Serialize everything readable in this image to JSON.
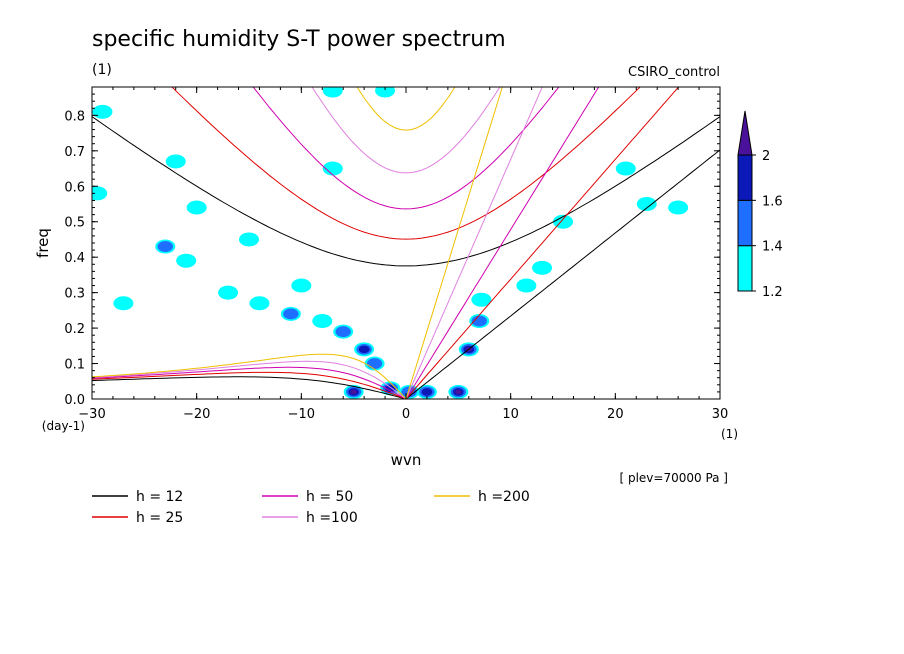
{
  "chart_data": {
    "type": "contour",
    "title": "specific humidity S-T power spectrum",
    "subtitle_left": "(1)",
    "subtitle_right": "CSIRO_control",
    "xlabel": "wvn",
    "ylabel": "freq",
    "x_unit": "(1)",
    "y_unit": "(day-1)",
    "xlim": [
      -30,
      30
    ],
    "ylim": [
      0,
      0.88
    ],
    "x_ticks": [
      -30,
      -20,
      -10,
      0,
      10,
      20,
      30
    ],
    "y_ticks": [
      0.0,
      0.1,
      0.2,
      0.3,
      0.4,
      0.5,
      0.6,
      0.7,
      0.8
    ],
    "annotation": "[ plev=70000 Pa ]",
    "colorbar": {
      "levels": [
        1.2,
        1.4,
        1.6,
        2
      ],
      "colors": [
        "#00ffff",
        "#1e6fff",
        "#0b19b8",
        "#4a129a"
      ]
    },
    "dispersion_curves": [
      {
        "label": "h = 12",
        "h": 12,
        "color": "#000000"
      },
      {
        "label": "h = 25",
        "h": 25,
        "color": "#e00000"
      },
      {
        "label": "h = 50",
        "h": 50,
        "color": "#d000b0"
      },
      {
        "label": "h =100",
        "h": 100,
        "color": "#e080e0"
      },
      {
        "label": "h =200",
        "h": 200,
        "color": "#f0c000"
      }
    ],
    "power_blobs": [
      {
        "x": -29,
        "y": 0.81,
        "level": 1
      },
      {
        "x": -29.5,
        "y": 0.58,
        "level": 1
      },
      {
        "x": -23,
        "y": 0.43,
        "level": 2
      },
      {
        "x": -21,
        "y": 0.39,
        "level": 1
      },
      {
        "x": -20,
        "y": 0.54,
        "level": 1
      },
      {
        "x": -14,
        "y": 0.27,
        "level": 1
      },
      {
        "x": -11,
        "y": 0.24,
        "level": 2
      },
      {
        "x": -8,
        "y": 0.22,
        "level": 1
      },
      {
        "x": -6,
        "y": 0.19,
        "level": 2
      },
      {
        "x": -4,
        "y": 0.14,
        "level": 3
      },
      {
        "x": -3,
        "y": 0.1,
        "level": 2
      },
      {
        "x": -5,
        "y": 0.02,
        "level": 4
      },
      {
        "x": -1.5,
        "y": 0.03,
        "level": 3
      },
      {
        "x": 0.3,
        "y": 0.02,
        "level": 2
      },
      {
        "x": 2,
        "y": 0.02,
        "level": 3
      },
      {
        "x": 5,
        "y": 0.02,
        "level": 4
      },
      {
        "x": 6,
        "y": 0.14,
        "level": 4
      },
      {
        "x": 7,
        "y": 0.22,
        "level": 2
      },
      {
        "x": 7.2,
        "y": 0.28,
        "level": 1
      },
      {
        "x": -7,
        "y": 0.65,
        "level": 1
      },
      {
        "x": -22,
        "y": 0.67,
        "level": 1
      },
      {
        "x": 15,
        "y": 0.5,
        "level": 1
      },
      {
        "x": 23,
        "y": 0.55,
        "level": 1
      },
      {
        "x": 26,
        "y": 0.54,
        "level": 1
      },
      {
        "x": 21,
        "y": 0.65,
        "level": 1
      },
      {
        "x": 11.5,
        "y": 0.32,
        "level": 1
      },
      {
        "x": 13,
        "y": 0.37,
        "level": 1
      },
      {
        "x": -10,
        "y": 0.32,
        "level": 1
      },
      {
        "x": -17,
        "y": 0.3,
        "level": 1
      },
      {
        "x": -27,
        "y": 0.27,
        "level": 1
      },
      {
        "x": -15,
        "y": 0.45,
        "level": 1
      },
      {
        "x": -2,
        "y": 0.87,
        "level": 1
      },
      {
        "x": -7,
        "y": 0.87,
        "level": 1
      }
    ]
  }
}
